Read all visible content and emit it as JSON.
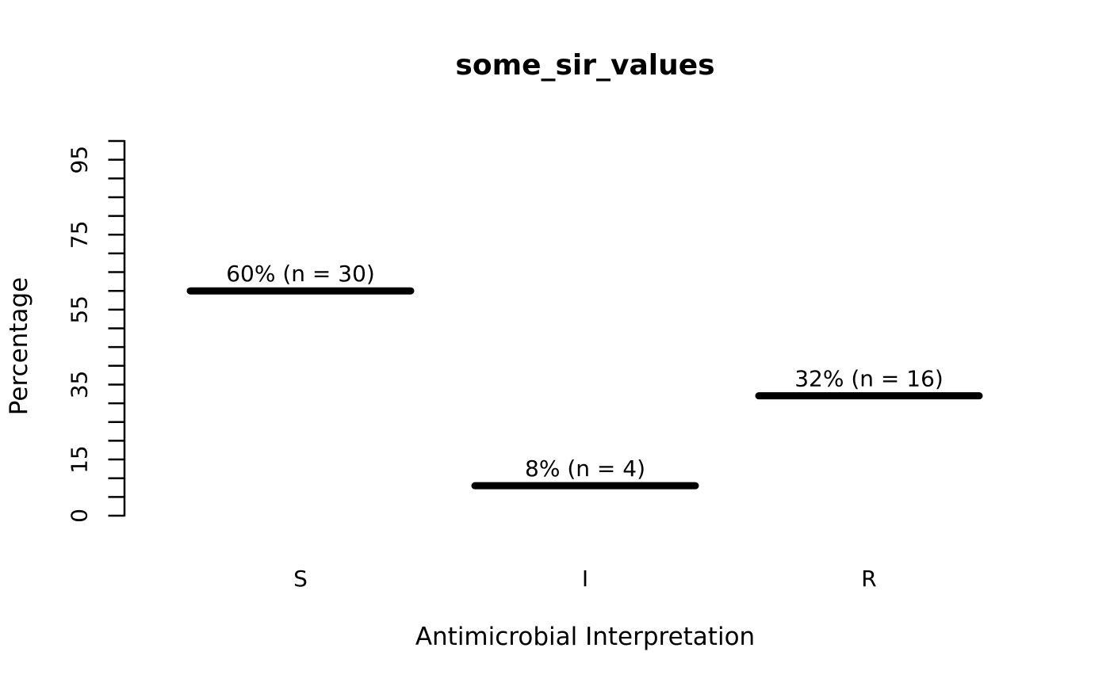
{
  "chart_data": {
    "type": "bar",
    "style": "horizontal-segments",
    "title": "some_sir_values",
    "xlabel": "Antimicrobial Interpretation",
    "ylabel": "Percentage",
    "categories": [
      "S",
      "I",
      "R"
    ],
    "values": [
      60,
      8,
      32
    ],
    "counts": [
      30,
      4,
      16
    ],
    "point_labels": [
      "60% (n = 30)",
      "8% (n = 4)",
      "32% (n = 16)"
    ],
    "ylim": [
      0,
      100
    ],
    "y_tick_step": 5,
    "y_labeled_ticks": [
      0,
      15,
      35,
      55,
      75,
      95
    ],
    "grid": false,
    "legend_position": "none",
    "colors": {
      "foreground": "#000000",
      "background": "#ffffff"
    }
  }
}
